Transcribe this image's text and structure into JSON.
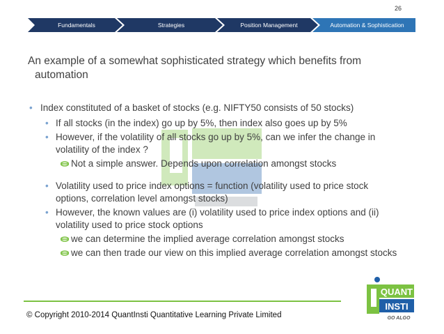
{
  "slide_number": "26",
  "nav": {
    "tabs": [
      {
        "label": "Fundamentals"
      },
      {
        "label": "Strategies"
      },
      {
        "label": "Position Management"
      },
      {
        "label": "Automation & Sophistication"
      }
    ],
    "colors": {
      "inactive": "#1f3864",
      "active": "#2e75b6"
    }
  },
  "title": {
    "line1": "An example of a somewhat sophisticated strategy which benefits from",
    "line2": "automation"
  },
  "bullets": {
    "b1": "Index constituted of a basket of stocks (e.g. NIFTY50 consists of 50 stocks)",
    "b1_1": "If all stocks (in the index) go up by 5%, then index also goes up by 5%",
    "b1_2a": "However, if the volatility of all stocks go up by 5%, can we infer the change in",
    "b1_2b": "volatility of the index ?",
    "b1_2_1": "Not a simple answer. Depends upon correlation amongst stocks",
    "b2_1a": "Volatility used to price index options = function (volatility used to price stock",
    "b2_1b": "options, correlation level amongst stocks)",
    "b2_2a": "However, the known values are (i) volatility used to price index options and (ii)",
    "b2_2b": "volatility used to price stock options",
    "b2_2_1": "we can determine the implied average correlation amongst stocks",
    "b2_2_2": "we can then trade our view on this implied average correlation amongst stocks"
  },
  "footer": {
    "copyright": "© Copyright 2010-2014 QuantInsti Quantitative Learning Private  Limited"
  },
  "logo": {
    "line1": "QUANT",
    "line2": "INSTI",
    "tagline": "GO ALGO",
    "colors": {
      "green": "#7cc242",
      "blue": "#1f5fa8"
    }
  },
  "accent_colors": {
    "bullet": "#7ba3d0",
    "sub_bullet": "#7cc242",
    "footer_line": "#7cc242"
  }
}
